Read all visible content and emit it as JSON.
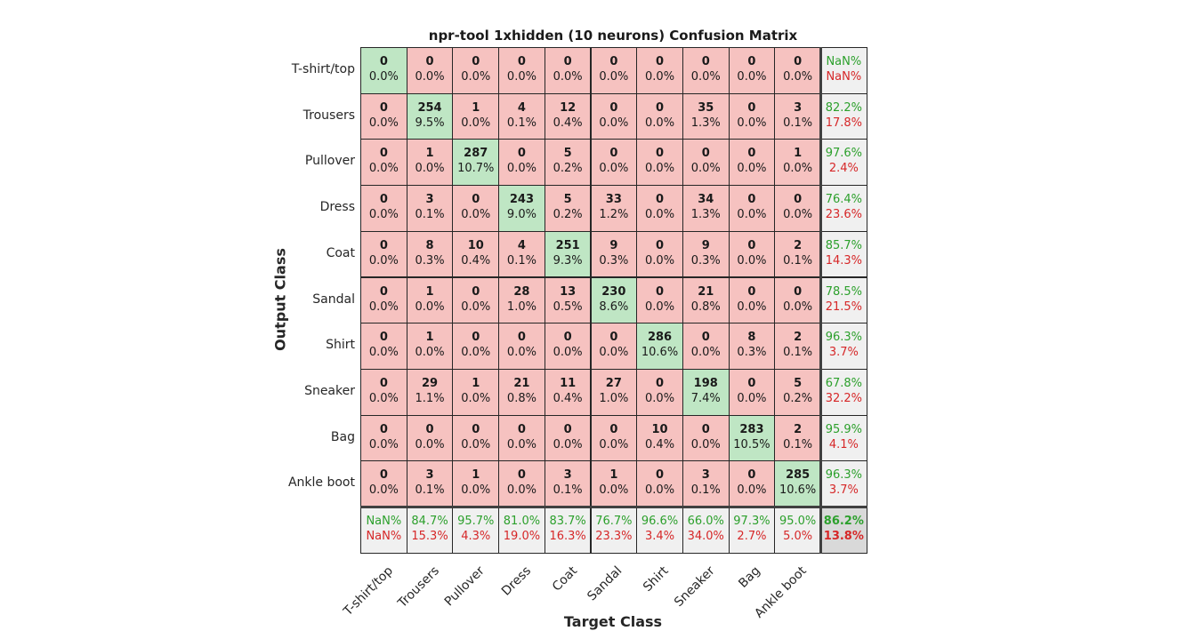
{
  "chart_data": {
    "type": "heatmap",
    "title": "npr-tool 1xhidden (10 neurons) Confusion Matrix",
    "xlabel": "Target Class",
    "ylabel": "Output Class",
    "classes": [
      "T-shirt/top",
      "Trousers",
      "Pullover",
      "Dress",
      "Coat",
      "Sandal",
      "Shirt",
      "Sneaker",
      "Bag",
      "Ankle boot"
    ],
    "counts": [
      [
        0,
        0,
        0,
        0,
        0,
        0,
        0,
        0,
        0,
        0
      ],
      [
        0,
        254,
        1,
        4,
        12,
        0,
        0,
        35,
        0,
        3
      ],
      [
        0,
        1,
        287,
        0,
        5,
        0,
        0,
        0,
        0,
        1
      ],
      [
        0,
        3,
        0,
        243,
        5,
        33,
        0,
        34,
        0,
        0
      ],
      [
        0,
        8,
        10,
        4,
        251,
        9,
        0,
        9,
        0,
        2
      ],
      [
        0,
        1,
        0,
        28,
        13,
        230,
        0,
        21,
        0,
        0
      ],
      [
        0,
        1,
        0,
        0,
        0,
        0,
        286,
        0,
        8,
        2
      ],
      [
        0,
        29,
        1,
        21,
        11,
        27,
        0,
        198,
        0,
        5
      ],
      [
        0,
        0,
        0,
        0,
        0,
        0,
        10,
        0,
        283,
        2
      ],
      [
        0,
        3,
        1,
        0,
        3,
        1,
        0,
        3,
        0,
        285
      ]
    ],
    "percents": [
      [
        "0.0%",
        "0.0%",
        "0.0%",
        "0.0%",
        "0.0%",
        "0.0%",
        "0.0%",
        "0.0%",
        "0.0%",
        "0.0%"
      ],
      [
        "0.0%",
        "9.5%",
        "0.0%",
        "0.1%",
        "0.4%",
        "0.0%",
        "0.0%",
        "1.3%",
        "0.0%",
        "0.1%"
      ],
      [
        "0.0%",
        "0.0%",
        "10.7%",
        "0.0%",
        "0.2%",
        "0.0%",
        "0.0%",
        "0.0%",
        "0.0%",
        "0.0%"
      ],
      [
        "0.0%",
        "0.1%",
        "0.0%",
        "9.0%",
        "0.2%",
        "1.2%",
        "0.0%",
        "1.3%",
        "0.0%",
        "0.0%"
      ],
      [
        "0.0%",
        "0.3%",
        "0.4%",
        "0.1%",
        "9.3%",
        "0.3%",
        "0.0%",
        "0.3%",
        "0.0%",
        "0.1%"
      ],
      [
        "0.0%",
        "0.0%",
        "0.0%",
        "1.0%",
        "0.5%",
        "8.6%",
        "0.0%",
        "0.8%",
        "0.0%",
        "0.0%"
      ],
      [
        "0.0%",
        "0.0%",
        "0.0%",
        "0.0%",
        "0.0%",
        "0.0%",
        "10.6%",
        "0.0%",
        "0.3%",
        "0.1%"
      ],
      [
        "0.0%",
        "1.1%",
        "0.0%",
        "0.8%",
        "0.4%",
        "1.0%",
        "0.0%",
        "7.4%",
        "0.0%",
        "0.2%"
      ],
      [
        "0.0%",
        "0.0%",
        "0.0%",
        "0.0%",
        "0.0%",
        "0.0%",
        "0.4%",
        "0.0%",
        "10.5%",
        "0.1%"
      ],
      [
        "0.0%",
        "0.1%",
        "0.0%",
        "0.0%",
        "0.1%",
        "0.0%",
        "0.0%",
        "0.1%",
        "0.0%",
        "10.6%"
      ]
    ],
    "row_summary": [
      [
        "NaN%",
        "NaN%"
      ],
      [
        "82.2%",
        "17.8%"
      ],
      [
        "97.6%",
        "2.4%"
      ],
      [
        "76.4%",
        "23.6%"
      ],
      [
        "85.7%",
        "14.3%"
      ],
      [
        "78.5%",
        "21.5%"
      ],
      [
        "96.3%",
        "3.7%"
      ],
      [
        "67.8%",
        "32.2%"
      ],
      [
        "95.9%",
        "4.1%"
      ],
      [
        "96.3%",
        "3.7%"
      ]
    ],
    "col_summary": [
      [
        "NaN%",
        "NaN%"
      ],
      [
        "84.7%",
        "15.3%"
      ],
      [
        "95.7%",
        "4.3%"
      ],
      [
        "81.0%",
        "19.0%"
      ],
      [
        "83.7%",
        "16.3%"
      ],
      [
        "76.7%",
        "23.3%"
      ],
      [
        "96.6%",
        "3.4%"
      ],
      [
        "66.0%",
        "34.0%"
      ],
      [
        "97.3%",
        "2.7%"
      ],
      [
        "95.0%",
        "5.0%"
      ]
    ],
    "total": [
      "86.2%",
      "13.8%"
    ],
    "colors": {
      "correct_bg": "#bfe6c4",
      "incorrect_bg": "#f6c2c0",
      "summary_bg": "#f0f0f0",
      "total_bg": "#d9d9d9",
      "good_text": "#2ca02c",
      "bad_text": "#d62728"
    }
  }
}
